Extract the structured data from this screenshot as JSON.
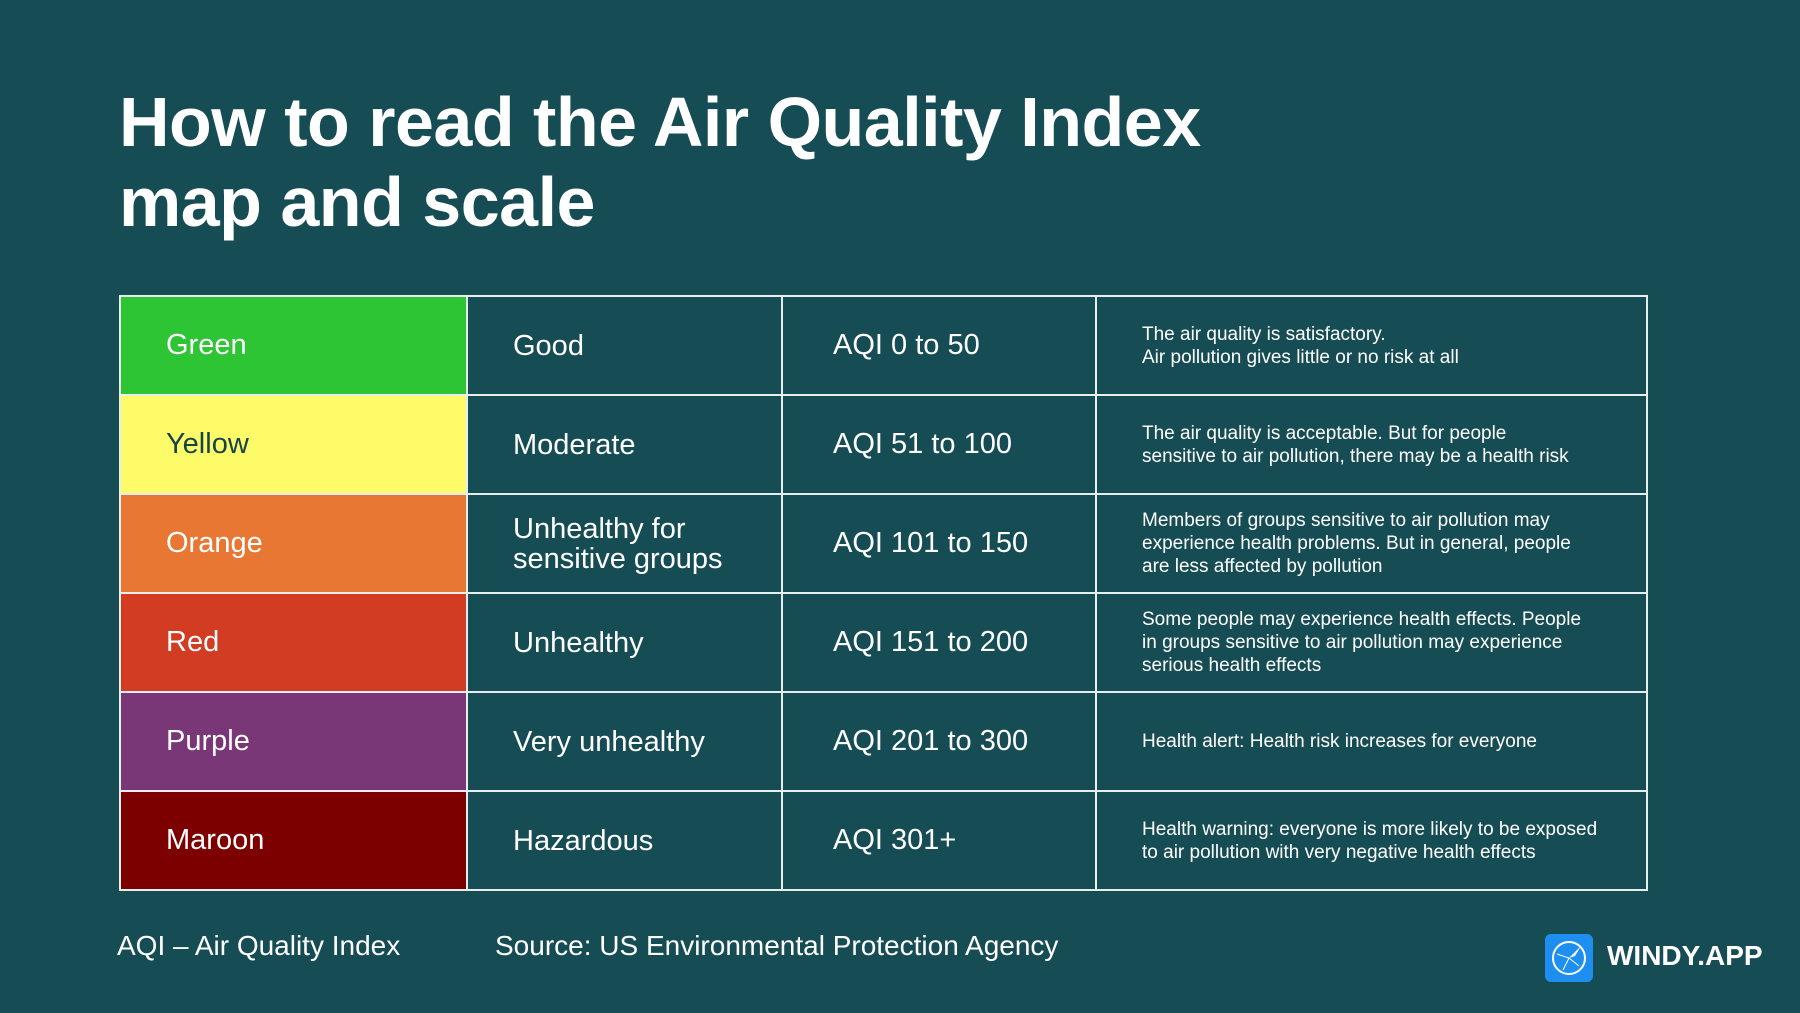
{
  "title_line1": "How to read the Air Quality Index",
  "title_line2": "map and scale",
  "rows": [
    {
      "color": "Green",
      "bg": "#2ec535",
      "fg": "#ffffff",
      "level": "Good",
      "range": "AQI 0 to 50",
      "desc": [
        "The air quality is satisfactory.",
        "Air pollution gives little or no risk at all"
      ]
    },
    {
      "color": "Yellow",
      "bg": "#fdfc68",
      "fg": "#16434a",
      "level": "Moderate",
      "range": "AQI 51 to 100",
      "desc": [
        "The air quality is acceptable. But for people",
        "sensitive to air pollution, there may be a health risk"
      ]
    },
    {
      "color": "Orange",
      "bg": "#e87733",
      "fg": "#ffffff",
      "level": "Unhealthy for sensitive groups",
      "range": "AQI 101 to 150",
      "desc": [
        "Members of groups sensitive to air pollution may",
        "experience health problems. But in general, people",
        "are less affected by pollution"
      ]
    },
    {
      "color": "Red",
      "bg": "#d23c22",
      "fg": "#ffffff",
      "level": "Unhealthy",
      "range": "AQI 151 to 200",
      "desc": [
        "Some people may experience health effects. People",
        "in groups sensitive to air pollution may experience",
        "serious health effects"
      ]
    },
    {
      "color": "Purple",
      "bg": "#7a3777",
      "fg": "#ffffff",
      "level": "Very unhealthy",
      "range": "AQI 201 to 300",
      "desc": [
        "Health alert: Health risk increases for everyone"
      ]
    },
    {
      "color": "Maroon",
      "bg": "#7c0000",
      "fg": "#ffffff",
      "level": "Hazardous",
      "range": "AQI 301+",
      "desc": [
        "Health warning: everyone is more likely to be exposed",
        "to air pollution with very negative health effects"
      ]
    }
  ],
  "footer": {
    "abbrev": "AQI – Air Quality Index",
    "source": "Source: US Environmental Protection Agency"
  },
  "brand": {
    "name": "WINDY.APP",
    "icon": "windy-logo-icon",
    "color": "#1e8ff0"
  }
}
